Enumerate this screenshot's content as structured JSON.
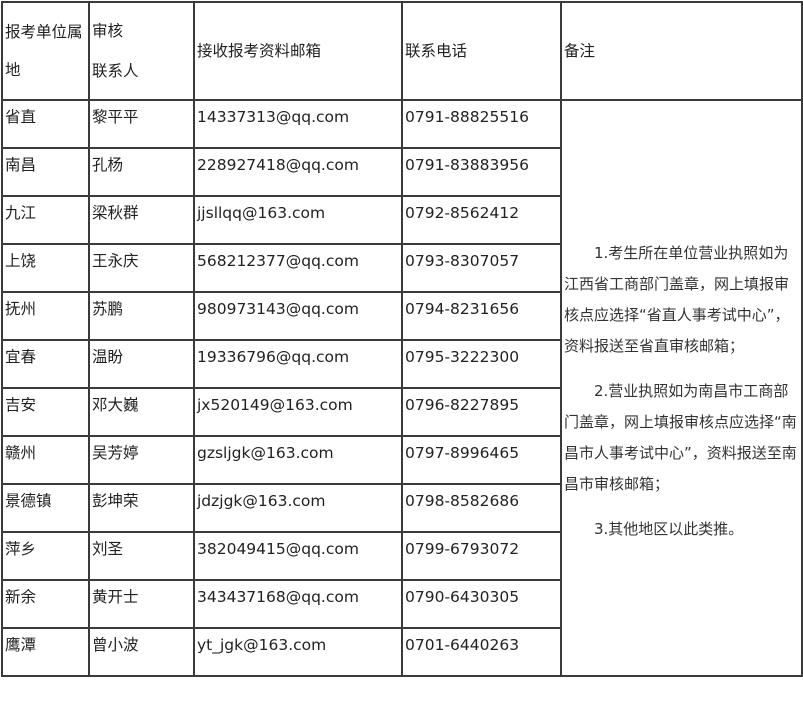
{
  "headers": {
    "region": "报考单位属地",
    "contact_line1": "审核",
    "contact_line2": "联系人",
    "email": "接收报考资料邮箱",
    "phone": "联系电话",
    "notes": "备注"
  },
  "rows": [
    {
      "region": "省直",
      "contact": "黎平平",
      "email": "14337313@qq.com",
      "phone": "0791-88825516"
    },
    {
      "region": "南昌",
      "contact": "孔杨",
      "email": "228927418@qq.com",
      "phone": "0791-83883956"
    },
    {
      "region": "九江",
      "contact": "梁秋群",
      "email": "jjsllqq@163.com",
      "phone": "0792-8562412"
    },
    {
      "region": "上饶",
      "contact": "王永庆",
      "email": "568212377@qq.com",
      "phone": "0793-8307057"
    },
    {
      "region": "抚州",
      "contact": "苏鹏",
      "email": "980973143@qq.com",
      "phone": "0794-8231656"
    },
    {
      "region": "宜春",
      "contact": "温盼",
      "email": "19336796@qq.com",
      "phone": "0795-3222300"
    },
    {
      "region": "吉安",
      "contact": "邓大巍",
      "email": "jx520149@163.com",
      "phone": "0796-8227895"
    },
    {
      "region": "赣州",
      "contact": "吴芳婷",
      "email": "gzsljgk@163.com",
      "phone": "0797-8996465"
    },
    {
      "region": "景德镇",
      "contact": "彭坤荣",
      "email": "jdzjgk@163.com",
      "phone": "0798-8582686"
    },
    {
      "region": "萍乡",
      "contact": "刘圣",
      "email": "382049415@qq.com",
      "phone": "0799-6793072"
    },
    {
      "region": "新余",
      "contact": "黄开士",
      "email": "343437168@qq.com",
      "phone": "0790-6430305"
    },
    {
      "region": "鹰潭",
      "contact": "曾小波",
      "email": "yt_jgk@163.com",
      "phone": "0701-6440263"
    }
  ],
  "notes": [
    "1.考生所在单位营业执照如为江西省工商部门盖章，网上填报审核点应选择“省直人事考试中心”，资料报送至省直审核邮箱；",
    "2.营业执照如为南昌市工商部门盖章，网上填报审核点应选择“南昌市人事考试中心”，资料报送至南昌市审核邮箱；",
    "3.其他地区以此类推。"
  ]
}
